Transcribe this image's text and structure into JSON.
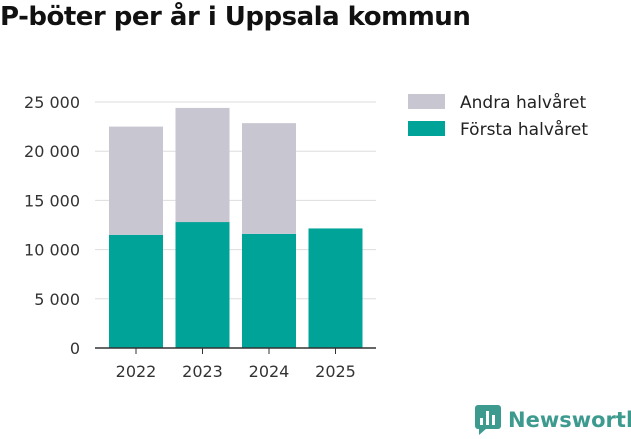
{
  "chart_data": {
    "type": "bar",
    "stacked": true,
    "title": "P-böter per år i Uppsala kommun",
    "categories": [
      "2022",
      "2023",
      "2024",
      "2025"
    ],
    "series": [
      {
        "name": "Första halvåret",
        "values": [
          11500,
          12800,
          11600,
          12150
        ],
        "color": "#00a398"
      },
      {
        "name": "Andra halvåret",
        "values": [
          11000,
          11600,
          11250,
          null
        ],
        "color": "#c8c6d1"
      }
    ],
    "ylim": [
      0,
      25000
    ],
    "yticks": [
      0,
      5000,
      10000,
      15000,
      20000,
      25000
    ],
    "ytick_labels": [
      "0",
      "5 000",
      "10 000",
      "15 000",
      "20 000",
      "25 000"
    ],
    "legend": [
      "Andra halvåret",
      "Första halvåret"
    ],
    "legend_position": "top-right",
    "grid": true,
    "xlabel": "",
    "ylabel": ""
  },
  "branding": {
    "name": "Newsworthy",
    "icon": "bar-chart-speech-bubble-icon",
    "color": "#3c9a8f"
  }
}
